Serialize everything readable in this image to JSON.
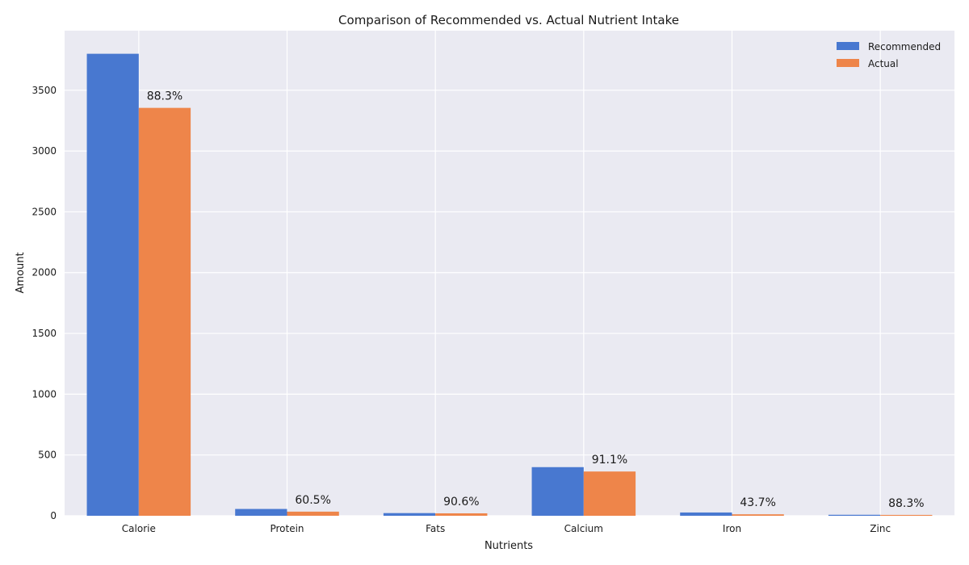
{
  "chart_data": {
    "type": "bar",
    "title": "Comparison of Recommended vs. Actual Nutrient Intake",
    "xlabel": "Nutrients",
    "ylabel": "Amount",
    "categories": [
      "Calorie",
      "Protein",
      "Fats",
      "Calcium",
      "Iron",
      "Zinc"
    ],
    "series": [
      {
        "name": "Recommended",
        "color": "#4878d0",
        "values": [
          3800,
          56,
          22,
          400,
          27,
          8
        ]
      },
      {
        "name": "Actual",
        "color": "#ee854a",
        "values": [
          3355,
          34,
          20,
          364,
          12,
          7
        ]
      }
    ],
    "data_labels": [
      "88.3%",
      "60.5%",
      "90.6%",
      "91.1%",
      "43.7%",
      "88.3%"
    ],
    "ylim": [
      0,
      3990
    ],
    "yticks": [
      0,
      500,
      1000,
      1500,
      2000,
      2500,
      3000,
      3500
    ],
    "grid": true,
    "legend_position": "top-right",
    "background": "#eaeaf2"
  }
}
